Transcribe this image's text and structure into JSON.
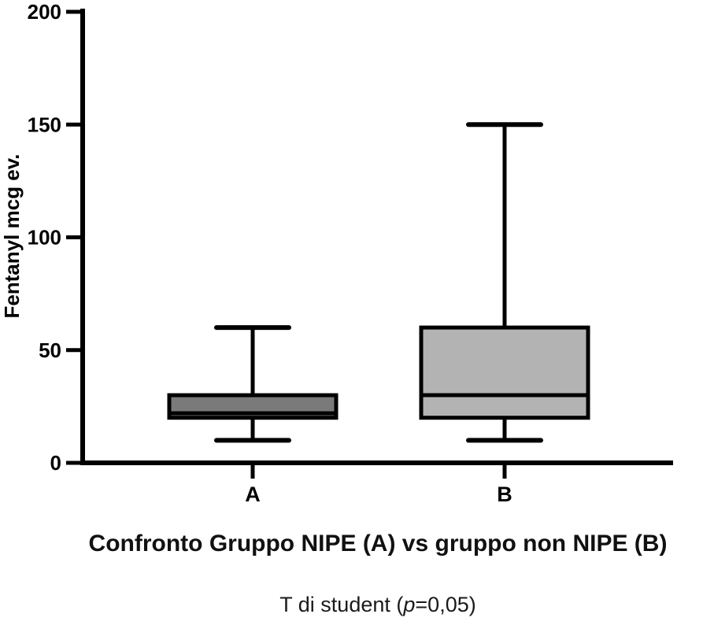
{
  "figure": {
    "title": "Confronto Gruppo NIPE (A) vs gruppo non NIPE (B)",
    "subtitle": {
      "prefix": "T di student (",
      "italic_var": "p",
      "suffix": "=0,05)"
    }
  },
  "chart_data": {
    "type": "boxplot",
    "title": "Confronto Gruppo NIPE (A) vs gruppo non NIPE (B)",
    "subtitle": "T di student (p=0,05)",
    "ylabel": "Fentanyl mcg ev.",
    "ylim": [
      0,
      200
    ],
    "yticks": [
      0,
      50,
      100,
      150,
      200
    ],
    "categories": [
      "A",
      "B"
    ],
    "series": [
      {
        "name": "Gruppo NIPE (A)",
        "category": "A",
        "min": 10,
        "q1": 20,
        "median": 22,
        "q3": 30,
        "max": 60,
        "fill": "#7a7a7a"
      },
      {
        "name": "gruppo non NIPE (B)",
        "category": "B",
        "min": 10,
        "q1": 20,
        "median": 30,
        "q3": 60,
        "max": 150,
        "fill": "#b3b3b3"
      }
    ],
    "grid": false,
    "legend": false,
    "stroke_color": "#000000",
    "background_color": "#ffffff"
  }
}
